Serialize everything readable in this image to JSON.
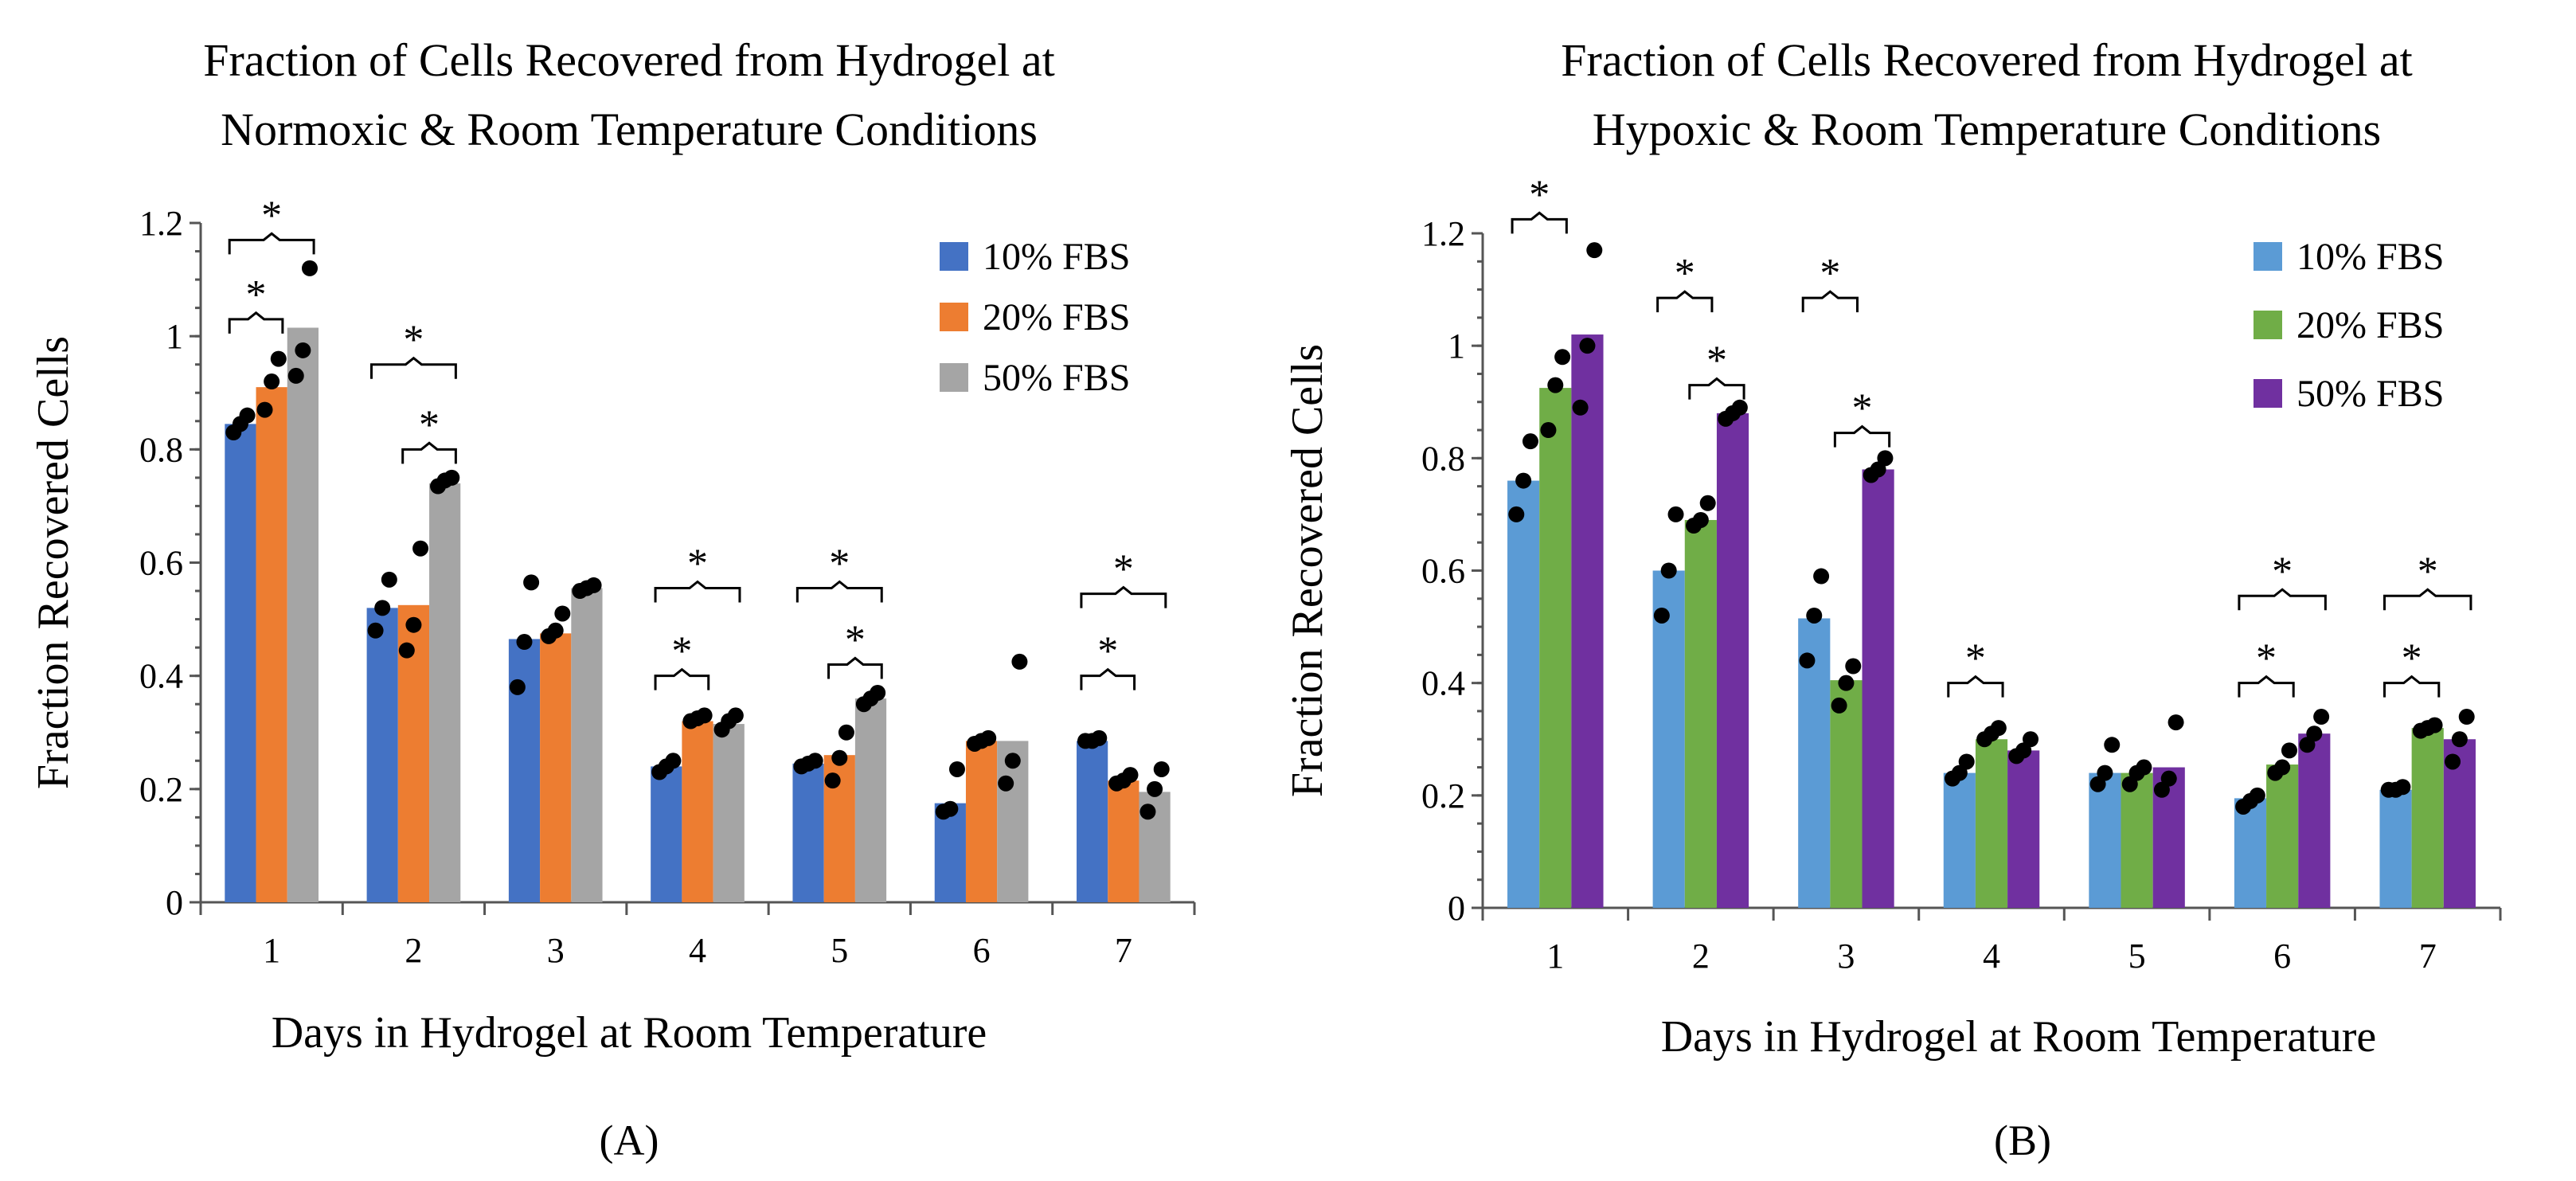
{
  "chart_data": [
    {
      "type": "bar",
      "panel_label": "(A)",
      "title": [
        "Fraction of Cells Recovered from Hydrogel at",
        "Normoxic & Room Temperature Conditions"
      ],
      "xlabel": "Days in Hydrogel at Room Temperature",
      "ylabel": "Fraction Recovered Cells",
      "ylim": [
        0,
        1.2
      ],
      "yticks": [
        "0",
        "0.2",
        "0.4",
        "0.6",
        "0.8",
        "1",
        "1.2"
      ],
      "ytick_values": [
        0,
        0.2,
        0.4,
        0.6,
        0.8,
        1.0,
        1.2
      ],
      "categories": [
        "1",
        "2",
        "3",
        "4",
        "5",
        "6",
        "7"
      ],
      "legend_position": "top-right",
      "series": [
        {
          "name": "10% FBS",
          "color": "#4472C4",
          "values": [
            0.845,
            0.52,
            0.465,
            0.24,
            0.245,
            0.175,
            0.285
          ],
          "points": [
            [
              0.83,
              0.845,
              0.86
            ],
            [
              0.48,
              0.52,
              0.57
            ],
            [
              0.38,
              0.46,
              0.565
            ],
            [
              0.23,
              0.24,
              0.25
            ],
            [
              0.24,
              0.245,
              0.25
            ],
            [
              0.16,
              0.165,
              0.235
            ],
            [
              0.285,
              0.285,
              0.29
            ]
          ]
        },
        {
          "name": "20% FBS",
          "color": "#ED7D31",
          "values": [
            0.91,
            0.525,
            0.475,
            0.32,
            0.26,
            0.285,
            0.215
          ],
          "points": [
            [
              0.87,
              0.92,
              0.96
            ],
            [
              0.445,
              0.49,
              0.625
            ],
            [
              0.47,
              0.48,
              0.51
            ],
            [
              0.32,
              0.325,
              0.33
            ],
            [
              0.215,
              0.255,
              0.3
            ],
            [
              0.28,
              0.285,
              0.29
            ],
            [
              0.21,
              0.215,
              0.225
            ]
          ]
        },
        {
          "name": "50% FBS",
          "color": "#A5A5A5",
          "values": [
            1.015,
            0.74,
            0.555,
            0.315,
            0.36,
            0.285,
            0.195
          ],
          "points": [
            [
              0.93,
              0.975,
              1.12
            ],
            [
              0.735,
              0.745,
              0.75
            ],
            [
              0.55,
              0.555,
              0.56
            ],
            [
              0.305,
              0.32,
              0.33
            ],
            [
              0.35,
              0.36,
              0.37
            ],
            [
              0.21,
              0.25,
              0.425
            ],
            [
              0.16,
              0.2,
              0.235
            ]
          ]
        }
      ],
      "significance": [
        {
          "day": "1",
          "from": 0,
          "to": 1,
          "y": 1.03,
          "label": "*"
        },
        {
          "day": "1",
          "from": 0,
          "to": 2,
          "y": 1.17,
          "label": "*"
        },
        {
          "day": "2",
          "from": 0,
          "to": 2,
          "y": 0.95,
          "label": "*"
        },
        {
          "day": "2",
          "from": 1,
          "to": 2,
          "y": 0.8,
          "label": "*"
        },
        {
          "day": "4",
          "from": 0,
          "to": 2,
          "y": 0.555,
          "label": "*"
        },
        {
          "day": "4",
          "from": 0,
          "to": 1,
          "y": 0.4,
          "label": "*"
        },
        {
          "day": "5",
          "from": 0,
          "to": 2,
          "y": 0.555,
          "label": "*"
        },
        {
          "day": "5",
          "from": 1,
          "to": 2,
          "y": 0.42,
          "label": "*"
        },
        {
          "day": "7",
          "from": 0,
          "to": 2,
          "y": 0.545,
          "label": "*"
        },
        {
          "day": "7",
          "from": 0,
          "to": 1,
          "y": 0.4,
          "label": "*"
        }
      ]
    },
    {
      "type": "bar",
      "panel_label": "(B)",
      "title": [
        "Fraction of Cells Recovered from Hydrogel at",
        "Hypoxic & Room Temperature Conditions"
      ],
      "xlabel": "Days in Hydrogel at Room Temperature",
      "ylabel": "Fraction Recovered Cells",
      "ylim": [
        0,
        1.2
      ],
      "yticks": [
        "0",
        "0.2",
        "0.4",
        "0.6",
        "0.8",
        "1",
        "1.2"
      ],
      "ytick_values": [
        0,
        0.2,
        0.4,
        0.6,
        0.8,
        1.0,
        1.2
      ],
      "categories": [
        "1",
        "2",
        "3",
        "4",
        "5",
        "6",
        "7"
      ],
      "legend_position": "top-right",
      "series": [
        {
          "name": "10% FBS",
          "color": "#5B9BD5",
          "values": [
            0.76,
            0.6,
            0.515,
            0.24,
            0.24,
            0.195,
            0.21
          ],
          "points": [
            [
              0.7,
              0.76,
              0.83
            ],
            [
              0.52,
              0.6,
              0.7
            ],
            [
              0.44,
              0.52,
              0.59
            ],
            [
              0.23,
              0.24,
              0.26
            ],
            [
              0.22,
              0.24,
              0.29
            ],
            [
              0.18,
              0.19,
              0.2
            ],
            [
              0.21,
              0.21,
              0.215
            ]
          ]
        },
        {
          "name": "20% FBS",
          "color": "#70AD47",
          "values": [
            0.925,
            0.69,
            0.405,
            0.3,
            0.24,
            0.255,
            0.32
          ],
          "points": [
            [
              0.85,
              0.93,
              0.98
            ],
            [
              0.68,
              0.69,
              0.72
            ],
            [
              0.36,
              0.4,
              0.43
            ],
            [
              0.3,
              0.31,
              0.32
            ],
            [
              0.22,
              0.24,
              0.25
            ],
            [
              0.24,
              0.25,
              0.28
            ],
            [
              0.315,
              0.32,
              0.325
            ]
          ]
        },
        {
          "name": "50% FBS",
          "color": "#7030A0",
          "values": [
            1.02,
            0.88,
            0.78,
            0.28,
            0.25,
            0.31,
            0.3
          ],
          "points": [
            [
              0.89,
              1.0,
              1.17
            ],
            [
              0.87,
              0.88,
              0.89
            ],
            [
              0.77,
              0.78,
              0.8
            ],
            [
              0.27,
              0.28,
              0.3
            ],
            [
              0.21,
              0.23,
              0.33
            ],
            [
              0.29,
              0.31,
              0.34
            ],
            [
              0.26,
              0.3,
              0.34
            ]
          ]
        }
      ],
      "significance": [
        {
          "day": "1",
          "from": 0,
          "to": 1,
          "y": 1.225,
          "label": "*"
        },
        {
          "day": "2",
          "from": 0,
          "to": 1,
          "y": 1.085,
          "label": "*"
        },
        {
          "day": "2",
          "from": 1,
          "to": 2,
          "y": 0.93,
          "label": "*"
        },
        {
          "day": "3",
          "from": 0,
          "to": 1,
          "y": 1.085,
          "label": "*"
        },
        {
          "day": "3",
          "from": 1,
          "to": 2,
          "y": 0.845,
          "label": "*"
        },
        {
          "day": "4",
          "from": 0,
          "to": 1,
          "y": 0.4,
          "label": "*"
        },
        {
          "day": "6",
          "from": 0,
          "to": 2,
          "y": 0.555,
          "label": "*"
        },
        {
          "day": "6",
          "from": 0,
          "to": 1,
          "y": 0.4,
          "label": "*"
        },
        {
          "day": "7",
          "from": 0,
          "to": 2,
          "y": 0.555,
          "label": "*"
        },
        {
          "day": "7",
          "from": 0,
          "to": 1,
          "y": 0.4,
          "label": "*"
        }
      ]
    }
  ]
}
